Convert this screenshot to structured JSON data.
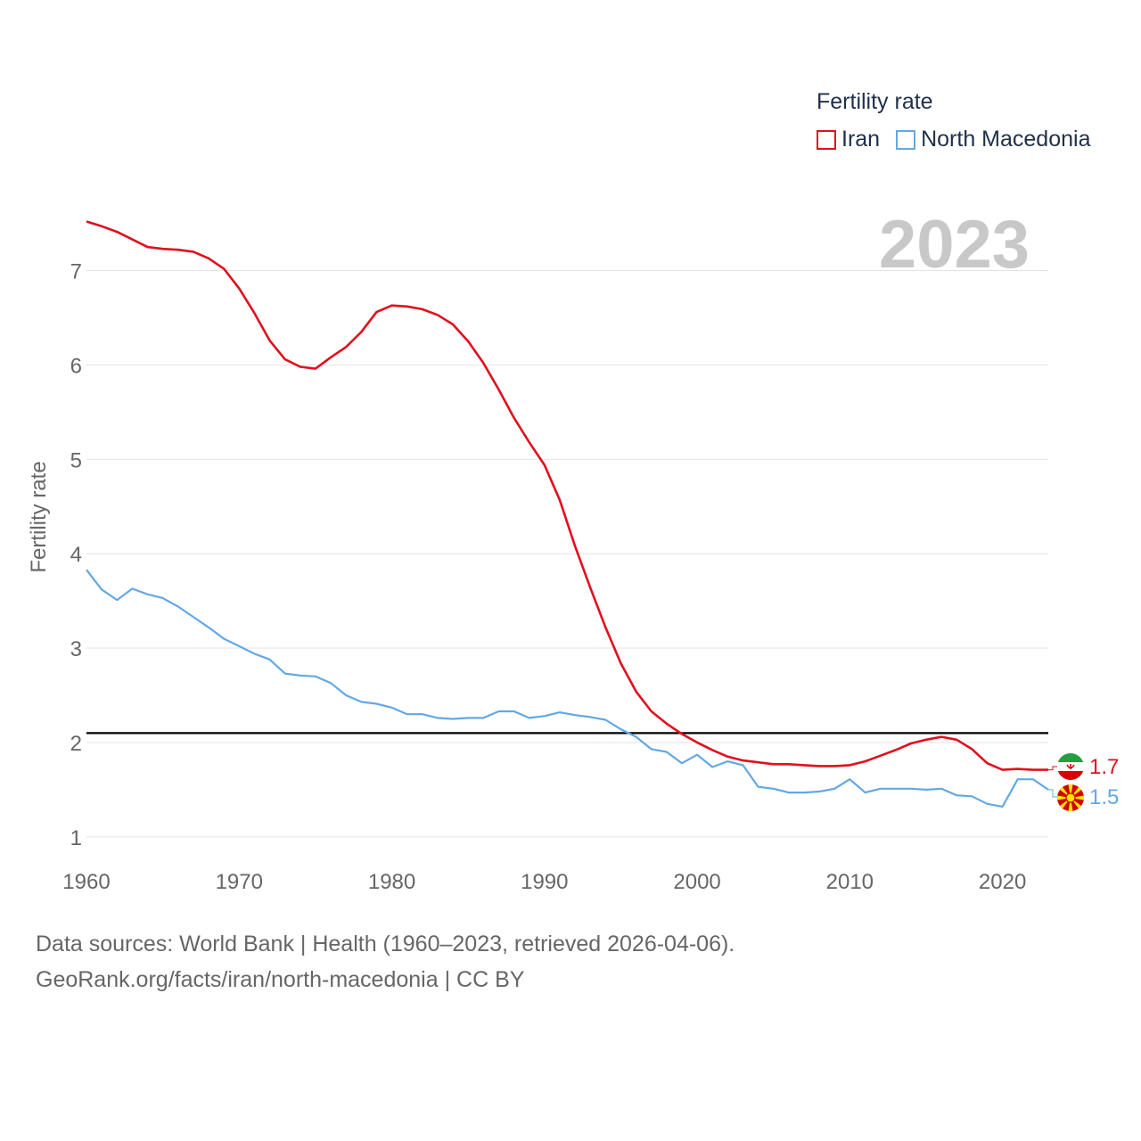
{
  "legend": {
    "title": "Fertility rate",
    "items": [
      {
        "label": "Iran",
        "color": "#e0101d"
      },
      {
        "label": "North Macedonia",
        "color": "#62a8e5"
      }
    ]
  },
  "footer": {
    "line1": "Data sources: World Bank | Health (1960–2023, retrieved 2026-04-06).",
    "line2": "GeoRank.org/facts/iran/north-macedonia | CC BY"
  },
  "chart_data": {
    "type": "line",
    "title": "Fertility rate",
    "year_label": "2023",
    "xlabel": "",
    "ylabel": "Fertility rate",
    "xlim": [
      1960,
      2023
    ],
    "ylim": [
      0.8,
      7.6
    ],
    "xticks": [
      1960,
      1970,
      1980,
      1990,
      2000,
      2010,
      2020
    ],
    "yticks": [
      1,
      2,
      3,
      4,
      5,
      6,
      7
    ],
    "reference_line": 2.1,
    "grid": true,
    "legend_position": "top-right",
    "x": [
      1960,
      1961,
      1962,
      1963,
      1964,
      1965,
      1966,
      1967,
      1968,
      1969,
      1970,
      1971,
      1972,
      1973,
      1974,
      1975,
      1976,
      1977,
      1978,
      1979,
      1980,
      1981,
      1982,
      1983,
      1984,
      1985,
      1986,
      1987,
      1988,
      1989,
      1990,
      1991,
      1992,
      1993,
      1994,
      1995,
      1996,
      1997,
      1998,
      1999,
      2000,
      2001,
      2002,
      2003,
      2004,
      2005,
      2006,
      2007,
      2008,
      2009,
      2010,
      2011,
      2012,
      2013,
      2014,
      2015,
      2016,
      2017,
      2018,
      2019,
      2020,
      2021,
      2022,
      2023
    ],
    "series": [
      {
        "name": "Iran",
        "color": "#e0101d",
        "end_label": "1.7",
        "values": [
          7.52,
          7.47,
          7.41,
          7.33,
          7.25,
          7.23,
          7.22,
          7.2,
          7.13,
          7.02,
          6.81,
          6.55,
          6.26,
          6.06,
          5.98,
          5.96,
          6.08,
          6.19,
          6.35,
          6.56,
          6.63,
          6.62,
          6.59,
          6.53,
          6.43,
          6.25,
          6.02,
          5.74,
          5.44,
          5.18,
          4.94,
          4.57,
          4.08,
          3.64,
          3.22,
          2.84,
          2.54,
          2.33,
          2.2,
          2.09,
          2.0,
          1.92,
          1.85,
          1.81,
          1.79,
          1.77,
          1.77,
          1.76,
          1.75,
          1.75,
          1.76,
          1.8,
          1.86,
          1.92,
          1.99,
          2.03,
          2.06,
          2.03,
          1.93,
          1.78,
          1.71,
          1.72,
          1.71,
          1.71
        ]
      },
      {
        "name": "North Macedonia",
        "color": "#62a8e5",
        "end_label": "1.5",
        "values": [
          3.83,
          3.62,
          3.51,
          3.63,
          3.57,
          3.53,
          3.44,
          3.33,
          3.22,
          3.1,
          3.02,
          2.94,
          2.88,
          2.73,
          2.71,
          2.7,
          2.63,
          2.5,
          2.43,
          2.41,
          2.37,
          2.3,
          2.3,
          2.26,
          2.25,
          2.26,
          2.26,
          2.33,
          2.33,
          2.26,
          2.28,
          2.32,
          2.29,
          2.27,
          2.24,
          2.14,
          2.06,
          1.93,
          1.9,
          1.78,
          1.87,
          1.74,
          1.8,
          1.76,
          1.53,
          1.51,
          1.47,
          1.47,
          1.48,
          1.51,
          1.61,
          1.47,
          1.51,
          1.51,
          1.51,
          1.5,
          1.51,
          1.44,
          1.43,
          1.35,
          1.32,
          1.61,
          1.61,
          1.5
        ]
      }
    ]
  }
}
